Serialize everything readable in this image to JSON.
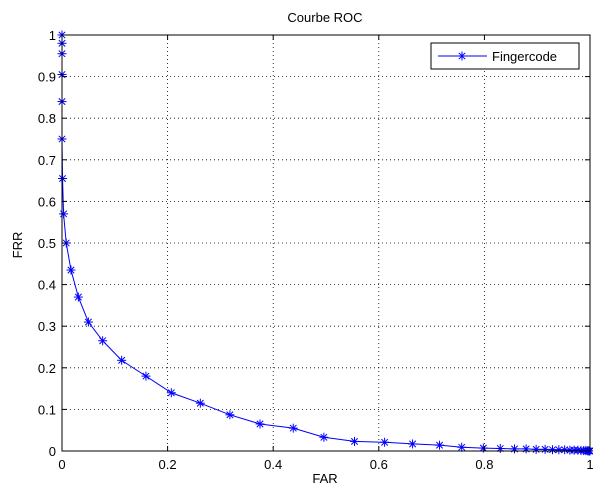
{
  "chart_data": {
    "type": "line",
    "title": "Courbe ROC",
    "xlabel": "FAR",
    "ylabel": "FRR",
    "xlim": [
      0,
      1
    ],
    "ylim": [
      0,
      1
    ],
    "xticks": [
      "0",
      "0.2",
      "0.4",
      "0.6",
      "0.8",
      "1"
    ],
    "xtick_values": [
      0,
      0.2,
      0.4,
      0.6,
      0.8,
      1
    ],
    "yticks": [
      "0",
      "0.1",
      "0.2",
      "0.3",
      "0.4",
      "0.5",
      "0.6",
      "0.7",
      "0.8",
      "0.9",
      "1"
    ],
    "ytick_values": [
      0,
      0.1,
      0.2,
      0.3,
      0.4,
      0.5,
      0.6,
      0.7,
      0.8,
      0.9,
      1
    ],
    "grid": true,
    "legend_position": "top-right",
    "series": [
      {
        "name": "Fingercode",
        "color": "#0000ff",
        "marker": "asterisk",
        "x": [
          0,
          0,
          0,
          0,
          0,
          0,
          0.001,
          0.003,
          0.008,
          0.017,
          0.031,
          0.05,
          0.077,
          0.113,
          0.159,
          0.207,
          0.262,
          0.318,
          0.375,
          0.438,
          0.496,
          0.554,
          0.611,
          0.664,
          0.715,
          0.757,
          0.798,
          0.83,
          0.857,
          0.879,
          0.898,
          0.915,
          0.929,
          0.941,
          0.952,
          0.962,
          0.97,
          0.977,
          0.983,
          0.988,
          0.992,
          0.995,
          0.997,
          0.999,
          1
        ],
        "y": [
          1,
          0.98,
          0.955,
          0.905,
          0.84,
          0.75,
          0.655,
          0.57,
          0.5,
          0.435,
          0.37,
          0.31,
          0.265,
          0.218,
          0.18,
          0.14,
          0.115,
          0.087,
          0.065,
          0.055,
          0.033,
          0.023,
          0.021,
          0.017,
          0.014,
          0.009,
          0.007,
          0.006,
          0.005,
          0.005,
          0.004,
          0.004,
          0.003,
          0.003,
          0.003,
          0.002,
          0.002,
          0.002,
          0.001,
          0.001,
          0.001,
          0.0005,
          0.0003,
          0.0001,
          0
        ]
      }
    ]
  }
}
